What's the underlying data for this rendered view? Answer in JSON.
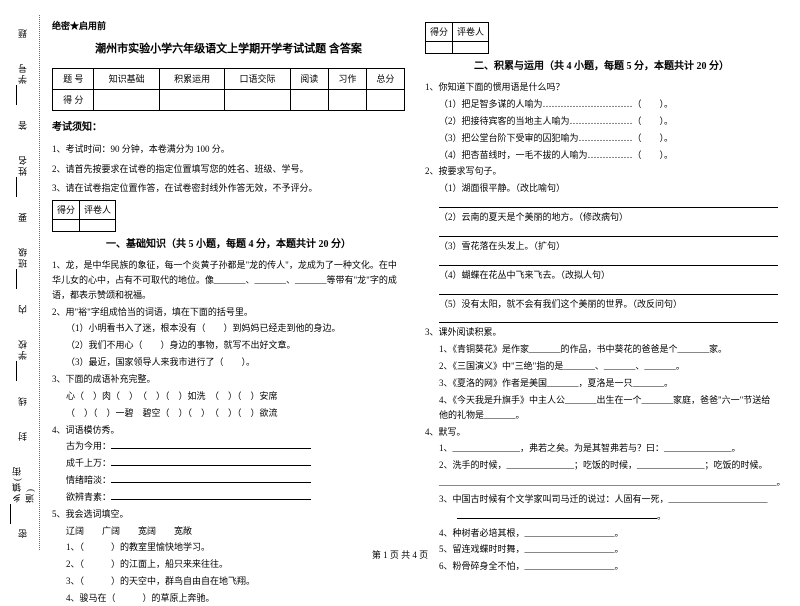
{
  "sidebar": {
    "items": [
      "学号",
      "姓名",
      "班级",
      "学校",
      "乡镇(街道)"
    ],
    "markers": [
      "题",
      "答",
      "要",
      "不",
      "内",
      "线",
      "封",
      "密"
    ]
  },
  "secret_label": "绝密★启用前",
  "title": "潮州市实验小学六年级语文上学期开学考试试题 含答案",
  "score_table": {
    "headers": [
      "题 号",
      "知识基础",
      "积累运用",
      "口语交际",
      "阅读",
      "习作",
      "总分"
    ],
    "row_label": "得 分"
  },
  "notice": {
    "title": "考试须知：",
    "items": [
      "1、考试时间：90 分钟，本卷满分为 100 分。",
      "2、请首先按要求在试卷的指定位置填写您的姓名、班级、学号。",
      "3、请在试卷指定位置作答，在试卷密封线外作答无效，不予评分。"
    ]
  },
  "mini_table": {
    "c1": "得分",
    "c2": "评卷人"
  },
  "section1": {
    "title": "一、基础知识（共 5 小题，每题 4 分，本题共计 20 分）",
    "q1": "1、龙，是中华民族的象征，每一个炎黄子孙都是\"龙的传人\"，龙成为了一种文化。在中华儿女的心中，占有不可取代的地位。像_______、_______、_______等带有\"龙\"字的成语，都表示赞颂和祝福。",
    "q2": "2、用\"裕\"字组成恰当的词语，填在下面的括号里。",
    "q2_items": [
      "（1）小明看书入了迷，根本没有（　　）到妈妈已经走到他的身边。",
      "（2）我们不用心（　　）身边的事物，就写不出好文章。",
      "（3）最近，国家领导人来我市进行了（　　）。"
    ],
    "q3": "3、下面的成语补充完整。",
    "q3_lines": [
      "心（　）肉（　）　（　）（　）如洗　（　）（　）安席",
      "（　）（　）一碧　碧空（　）（　）　（　）（　）欲流"
    ],
    "q4": "4、词语模仿秀。",
    "q4_items": [
      "古为今用：",
      "成千上万：",
      "情绪暗淡：",
      "欲辨青素："
    ],
    "q5": "5、我会选词填空。",
    "q5_words": "辽阔　　广阔　　宽阔　　宽敞",
    "q5_items": [
      "1、（　　　）的教室里愉快地学习。",
      "2、（　　　）的江面上，船只来来往往。",
      "3、（　　　）的天空中，群鸟自由自在地飞翔。",
      "4、骏马在（　　　）的草原上奔驰。"
    ]
  },
  "section2": {
    "title": "二、积累与运用（共 4 小题，每题 5 分，本题共计 20 分）",
    "q1": "1、你知道下面的惯用语是什么吗？",
    "q1_items": [
      "（1）把足智多谋的人喻为…………………………（　　）。",
      "（2）把接待宾客的当地主人喻为…………………（　　）。",
      "（3）把公堂台阶下受审的囚犯喻为………………（　　）。",
      "（4）把杏苗线时，一毛不拔的人喻为……………（　　）。"
    ],
    "q2": "2、按要求写句子。",
    "q2_items": [
      "（1）湖面很平静。（改比喻句）",
      "（2）云南的夏天是个美丽的地方。（修改病句）",
      "（3）雪花落在头发上。（扩句）",
      "（4）蝴蝶在花丛中飞来飞去。（改拟人句）",
      "（5）没有太阳，就不会有我们这个美丽的世界。（改反问句）"
    ],
    "q3": "3、课外阅读积累。",
    "q3_items": [
      "1、《青铜葵花》是作家_______的作品，书中葵花的爸爸是个_______家。",
      "2、《三国演义》中\"三绝\"指的是_______、_______、_______。",
      "3、《夏洛的网》作者是美国_______，夏洛是一只_______。",
      "4、《今天我是升旗手》中主人公_______出生在一个_______家庭，爸爸\"六一\"节送给他的礼物是_______。"
    ],
    "q4": "4、默写。",
    "q4_items": [
      "1、_______________，弗若之矣。为是其智弗若与？曰：_______________。",
      "2、洗手的时候，_______________；吃饭的时候，_______________；吃饭的时候。",
      "___________________________________________________________________________。",
      "3、中国古时候有个文学家叫司马迁的说过：人固有一死，______________________",
      "4、种树者必培其根，____________________。",
      "5、留连戏蝶时时舞，____________________。",
      "6、粉骨碎身全不怕，____________________。"
    ]
  },
  "footer": "第 1 页 共 4 页"
}
